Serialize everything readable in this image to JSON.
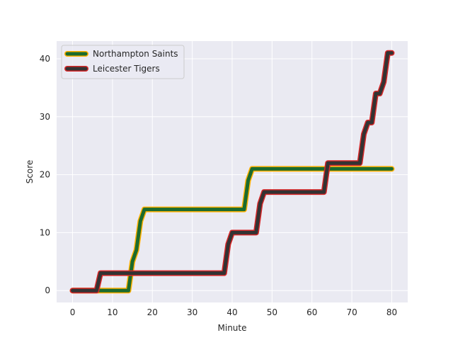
{
  "chart_data": {
    "type": "line",
    "xlabel": "Minute",
    "ylabel": "Score",
    "xlim": [
      -4,
      84
    ],
    "ylim": [
      -2.05,
      43.05
    ],
    "xticks": [
      0,
      10,
      20,
      30,
      40,
      50,
      60,
      70,
      80
    ],
    "yticks": [
      0,
      10,
      20,
      30,
      40
    ],
    "grid": true,
    "legend_position": "upper-left",
    "series": [
      {
        "name": "Northampton Saints",
        "line_color": "#ffb000",
        "fill_color": "#1a6b2e",
        "x": [
          0,
          14,
          15,
          16,
          17,
          18,
          43,
          44,
          45,
          80
        ],
        "y": [
          0,
          0,
          5,
          7,
          12,
          14,
          14,
          19,
          21,
          21
        ]
      },
      {
        "name": "Leicester Tigers",
        "line_color": "#d62728",
        "fill_color": "#333333",
        "x": [
          0,
          6,
          7,
          38,
          39,
          40,
          46,
          47,
          48,
          63,
          64,
          72,
          73,
          74,
          75,
          76,
          77,
          78,
          79,
          80
        ],
        "y": [
          0,
          0,
          3,
          3,
          8,
          10,
          10,
          15,
          17,
          17,
          22,
          22,
          27,
          29,
          29,
          34,
          34,
          36,
          41,
          41
        ]
      }
    ]
  }
}
